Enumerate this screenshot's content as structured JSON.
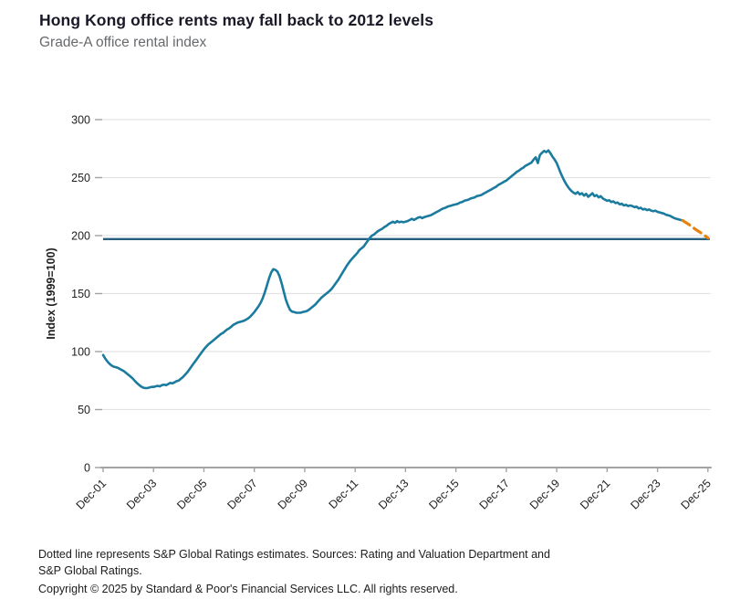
{
  "header": {
    "title": "Hong Kong office rents may fall back to 2012 levels",
    "subtitle": "Grade-A office rental index"
  },
  "footer": {
    "note": "Dotted line represents S&P Global Ratings estimates. Sources: Rating and Valuation Department and S&P Global Ratings.",
    "copyright": "Copyright © 2025 by Standard & Poor's Financial Services LLC. All rights reserved."
  },
  "colors": {
    "series_teal": "#1b7b9e",
    "estimate_orange": "#e6830e",
    "reference_navy": "#265f80",
    "gridline": "#e3e3e3",
    "axis": "#a3a3a3",
    "tick_text": "#1f1f1f"
  },
  "chart_data": {
    "type": "line",
    "title": "Grade-A office rental index",
    "ylabel": "Index (1999=100)",
    "ylim": [
      0,
      300
    ],
    "y_ticks": [
      0,
      50,
      100,
      150,
      200,
      250,
      300
    ],
    "grid": "horizontal-light",
    "x_tick_labels": [
      "Dec-01",
      "Dec-03",
      "Dec-05",
      "Dec-07",
      "Dec-09",
      "Dec-11",
      "Dec-13",
      "Dec-15",
      "Dec-17",
      "Dec-19",
      "Dec-21",
      "Dec-23",
      "Dec-25"
    ],
    "x_tick_months": [
      0,
      24,
      48,
      72,
      96,
      120,
      144,
      168,
      192,
      216,
      240,
      264,
      288
    ],
    "x_domain_months": [
      0,
      288
    ],
    "reference_line": {
      "value": 197,
      "style": "solid"
    },
    "series": [
      {
        "name": "Grade-A office rental index (actual)",
        "style": "solid",
        "start_month": 0,
        "step_months": 1,
        "values": [
          97,
          94,
          91.5,
          89.5,
          88,
          87,
          86.5,
          86,
          85,
          84,
          83,
          81.5,
          80,
          78.5,
          77,
          75,
          73,
          71.5,
          70,
          69,
          68.5,
          68.5,
          69,
          69.5,
          69.5,
          70,
          70.5,
          70,
          71,
          71.5,
          71,
          72,
          73,
          72.5,
          73.5,
          74.5,
          75,
          76.5,
          78,
          80,
          82,
          84.5,
          87,
          89.5,
          92,
          94.5,
          97,
          99.5,
          102,
          104,
          106,
          107.5,
          109,
          110.5,
          112,
          113.5,
          115,
          116,
          117.5,
          119,
          120,
          121.5,
          123,
          124,
          125,
          125.5,
          126,
          126.5,
          127.5,
          128.5,
          130,
          132,
          134,
          136.5,
          139,
          142,
          146,
          151,
          157,
          163,
          168,
          171,
          170.5,
          169,
          165,
          159,
          152,
          145,
          140,
          136,
          134.5,
          134,
          133.5,
          133.5,
          133.5,
          134,
          134.5,
          135,
          136,
          137.5,
          139,
          140.5,
          142.5,
          144.5,
          146.5,
          148,
          149.5,
          151,
          152.5,
          154.5,
          157,
          159.5,
          162,
          165,
          168,
          171,
          174,
          176.5,
          179,
          181,
          183,
          185,
          187.5,
          189,
          190.5,
          193,
          195.5,
          198,
          200,
          201,
          202.5,
          204,
          205,
          206,
          207.5,
          208.5,
          210,
          211,
          212,
          211,
          212.5,
          211.5,
          212,
          211.5,
          212,
          212.5,
          213.5,
          214.5,
          213.5,
          214.5,
          215.5,
          216,
          215,
          216,
          216.5,
          217,
          217.5,
          218.5,
          219.5,
          220.5,
          221.5,
          222.5,
          223.5,
          224,
          225,
          225.5,
          226,
          226.5,
          227,
          227.5,
          228.5,
          229,
          230,
          230.5,
          231,
          232,
          232.5,
          233,
          234,
          234.5,
          235,
          236,
          237,
          238,
          239,
          240,
          241,
          242,
          243.5,
          244.5,
          245.5,
          246.5,
          247.5,
          249,
          250.5,
          252,
          253.5,
          255,
          256,
          257.5,
          258.5,
          260,
          261,
          262,
          263,
          265.5,
          267.5,
          262.5,
          269.5,
          271.5,
          273,
          272,
          273.5,
          271,
          268,
          265.5,
          262.5,
          258,
          253.5,
          249.5,
          246,
          243,
          240.5,
          238.5,
          237,
          236,
          237.5,
          235.5,
          236.5,
          234.5,
          236,
          233.5,
          235,
          236.5,
          234,
          235,
          233,
          234,
          232,
          231,
          230,
          230.5,
          229,
          229.5,
          228,
          228.5,
          227,
          227.5,
          226,
          226.5,
          225.5,
          226,
          225.5,
          224.5,
          225,
          223.5,
          224,
          222.5,
          223,
          222,
          222.5,
          221.5,
          221,
          221.5,
          220.5,
          220,
          219.5,
          219,
          218,
          217.5,
          217,
          216,
          215,
          214.5,
          214,
          213.5,
          213
        ]
      },
      {
        "name": "S&P Global Ratings estimates",
        "style": "dashed",
        "months": [
          276,
          279,
          282,
          285,
          288
        ],
        "values": [
          213,
          209.5,
          205.5,
          202,
          198
        ]
      }
    ]
  }
}
